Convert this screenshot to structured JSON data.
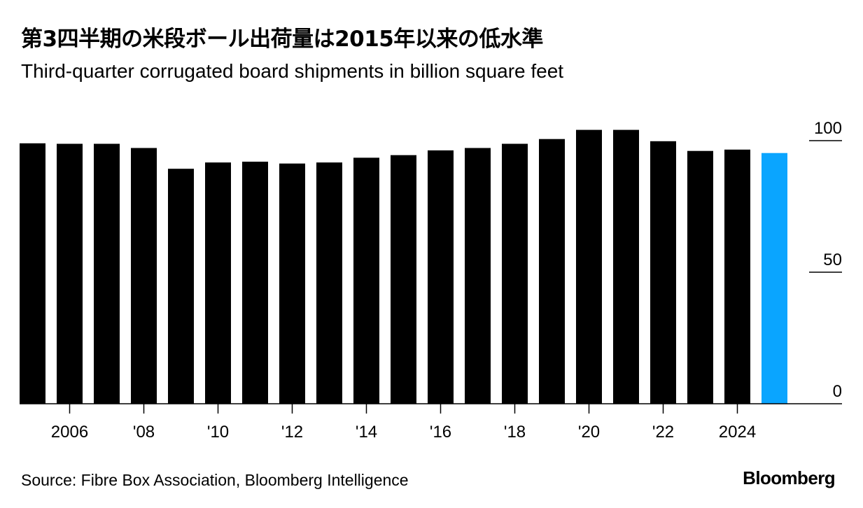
{
  "header": {
    "title": "第3四半期の米段ボール出荷量は2015年以来の低水準",
    "subtitle": "Third-quarter corrugated board shipments in billion square feet"
  },
  "footer": {
    "source": "Source: Fibre Box Association, Bloomberg Intelligence",
    "brand": "Bloomberg"
  },
  "colors": {
    "bar": "#000000",
    "highlight": "#0aa5ff",
    "axis": "#000000"
  },
  "chart_data": {
    "type": "bar",
    "title": "第3四半期の米段ボール出荷量は2015年以来の低水準",
    "subtitle": "Third-quarter corrugated board shipments in billion square feet",
    "categories": [
      "2005",
      "2006",
      "2007",
      "2008",
      "2009",
      "2010",
      "2011",
      "2012",
      "2013",
      "2014",
      "2015",
      "2016",
      "2017",
      "2018",
      "2019",
      "2020",
      "2021",
      "2022",
      "2023",
      "2024",
      "2025"
    ],
    "values": [
      99,
      98.8,
      98.8,
      97.2,
      89.3,
      91.7,
      92,
      91.3,
      91.7,
      93.5,
      94.5,
      96.3,
      97.2,
      98.8,
      100.6,
      104.1,
      104.1,
      99.8,
      96.1,
      96.6,
      95.3
    ],
    "highlight_index": 20,
    "x_tick_labels": [
      {
        "category": "2006",
        "label": "2006"
      },
      {
        "category": "2008",
        "label": "'08"
      },
      {
        "category": "2010",
        "label": "'10"
      },
      {
        "category": "2012",
        "label": "'12"
      },
      {
        "category": "2014",
        "label": "'14"
      },
      {
        "category": "2016",
        "label": "'16"
      },
      {
        "category": "2018",
        "label": "'18"
      },
      {
        "category": "2020",
        "label": "'20"
      },
      {
        "category": "2022",
        "label": "'22"
      },
      {
        "category": "2024",
        "label": "2024"
      }
    ],
    "y_ticks": [
      0,
      50,
      100
    ],
    "ylim": [
      0,
      100
    ],
    "y_axis_position": "right",
    "grid": false,
    "legend": "none"
  }
}
